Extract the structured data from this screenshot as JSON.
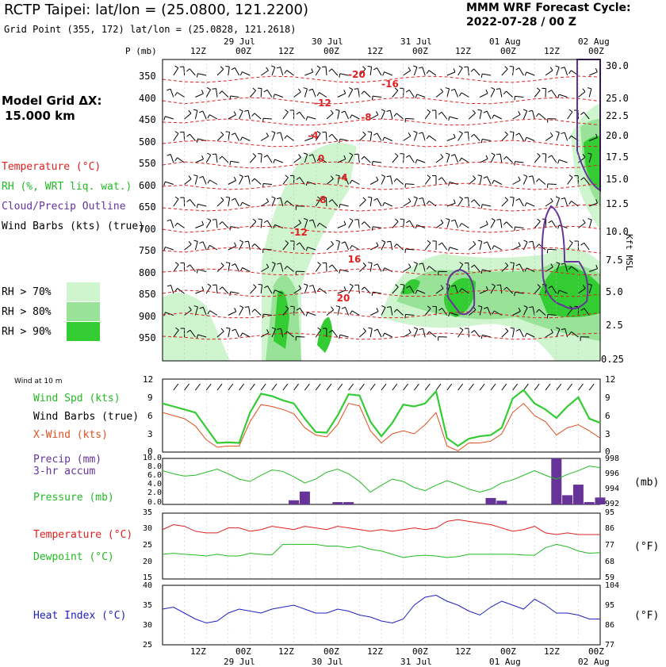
{
  "header": {
    "station_title": "RCTP Taipei:  lat/lon = (25.0800, 121.2200)",
    "grid_point": "Grid Point (355, 172) lat/lon = (25.0828, 121.2618)",
    "forecast_title": "MMM WRF Forecast Cycle:",
    "forecast_cycle": "2022-07-28 / 00  Z"
  },
  "time_axis": {
    "hour_labels": [
      "12Z",
      "00Z",
      "12Z",
      "00Z",
      "12Z",
      "00Z",
      "12Z",
      "00Z",
      "12Z",
      "00Z"
    ],
    "day_labels": [
      "29 Jul",
      "30 Jul",
      "31 Jul",
      "01 Aug",
      "02 Aug"
    ]
  },
  "sounding": {
    "pressure_unit_label": "P (mb)",
    "pressure_levels": [
      "350",
      "400",
      "450",
      "500",
      "550",
      "600",
      "650",
      "700",
      "750",
      "800",
      "850",
      "900",
      "950"
    ],
    "height_levels": [
      "30.0",
      "25.0",
      "22.5",
      "20.0",
      "17.5",
      "15.0",
      "12.5",
      "10.0",
      "7.5",
      "5.0",
      "2.5",
      "0.25"
    ],
    "height_axis_label": "Kft MSL",
    "model_grid_label": "Model Grid ΔX:",
    "model_grid_value": "15.000 km",
    "legend": {
      "temperature": "Temperature (°C)",
      "rh": "RH (%, WRT liq. wat.)",
      "cloud": "Cloud/Precip Outline",
      "wind": "Wind Barbs (kts) (true)",
      "rh70": "RH > 70%",
      "rh80": "RH > 80%",
      "rh90": "RH > 90%"
    },
    "temperature_labels": [
      "-20",
      "-16",
      "-12",
      "-8",
      "-4",
      "-4",
      "0",
      "-8",
      "-12",
      "16",
      "20"
    ],
    "colors": {
      "temp": "#e02020",
      "rh70": "#cff5cf",
      "rh80": "#99e399",
      "rh90": "#33cc33",
      "cloud": "#663399"
    }
  },
  "wind_panel": {
    "title": "Wind at 10 m",
    "speed_label": "Wind Spd (kts)",
    "barbs_label": "Wind Barbs (true)",
    "xwind_label": "X-Wind (kts)",
    "y_ticks": [
      "12",
      "9",
      "6",
      "3",
      "0"
    ]
  },
  "precip_panel": {
    "precip_label": "Precip (mm)",
    "precip_sub": "3-hr accum",
    "pressure_label": "Pressure (mb)",
    "left_ticks": [
      "10.0",
      "8.0",
      "6.0",
      "4.0",
      "2.0",
      "0.0"
    ],
    "right_ticks": [
      "998",
      "996",
      "994",
      "992"
    ],
    "unit": "(mb)"
  },
  "temp_panel": {
    "temp_label": "Temperature (°C)",
    "dew_label": "Dewpoint (°C)",
    "left_ticks": [
      "35",
      "30",
      "25",
      "20",
      "15"
    ],
    "right_ticks": [
      "95",
      "86",
      "77",
      "68",
      "59"
    ],
    "unit": "(°F)"
  },
  "heat_panel": {
    "label": "Heat Index (°C)",
    "left_ticks": [
      "40",
      "35",
      "30",
      "25"
    ],
    "right_ticks": [
      "104",
      "95",
      "86",
      "77"
    ],
    "unit": "(°F)"
  },
  "chart_data": [
    {
      "type": "line",
      "title": "Wind at 10 m",
      "x": [
        0,
        1,
        2,
        3,
        4,
        5,
        6,
        7,
        8,
        9,
        10,
        11,
        12,
        13,
        14,
        15,
        16,
        17,
        18,
        19,
        20,
        21,
        22,
        23,
        24,
        25,
        26,
        27,
        28,
        29,
        30,
        31,
        32,
        33,
        34,
        35,
        36,
        37,
        38,
        39,
        40
      ],
      "ylim": [
        0,
        12
      ],
      "series": [
        {
          "name": "Wind Spd (kts)",
          "values": [
            8,
            7.5,
            7,
            6.5,
            4,
            1.5,
            1.6,
            1.5,
            6.5,
            9.6,
            9.2,
            8.5,
            8,
            5.5,
            3.3,
            3.2,
            6,
            9.5,
            9.3,
            5,
            2.6,
            4.8,
            7.8,
            7.5,
            8,
            10,
            2.3,
            1.0,
            2.2,
            2.6,
            2.8,
            4,
            8.8,
            10.2,
            8.0,
            7.0,
            5.6,
            7.5,
            9,
            5.5,
            4.8
          ]
        },
        {
          "name": "X-Wind (kts)",
          "values": [
            6.5,
            6.0,
            5.5,
            4.3,
            2.0,
            0.8,
            1.0,
            1.0,
            5.0,
            7.8,
            7.5,
            7.0,
            6.3,
            4.0,
            2.8,
            2.5,
            4.5,
            8.0,
            7.6,
            3.5,
            1.5,
            3.0,
            3.5,
            3.0,
            4.5,
            6.5,
            1.0,
            0.2,
            1.5,
            1.5,
            1.8,
            3.0,
            6.5,
            8.0,
            6.0,
            5.0,
            2.8,
            4.0,
            4.5,
            3.5,
            2.3
          ]
        }
      ]
    },
    {
      "type": "bar",
      "title": "Precip (mm) 3-hr accum",
      "x": [
        0,
        1,
        2,
        3,
        4,
        5,
        6,
        7,
        8,
        9,
        10,
        11,
        12,
        13,
        14,
        15,
        16,
        17,
        18,
        19,
        20,
        21,
        22,
        23,
        24,
        25,
        26,
        27,
        28,
        29,
        30,
        31,
        32,
        33,
        34,
        35,
        36,
        37,
        38,
        39,
        40
      ],
      "ylim": [
        0,
        10
      ],
      "values": [
        0,
        0,
        0,
        0,
        0,
        0,
        0,
        0,
        0,
        0,
        0,
        0,
        0.9,
        2.8,
        0,
        0,
        0.5,
        0.5,
        0,
        0,
        0,
        0,
        0,
        0,
        0,
        0,
        0,
        0,
        0,
        0,
        1.4,
        0.8,
        0,
        0,
        0,
        0,
        10,
        2,
        4.3,
        0.5,
        1.5
      ]
    },
    {
      "type": "line",
      "title": "Pressure (mb)",
      "x": [
        0,
        1,
        2,
        3,
        4,
        5,
        6,
        7,
        8,
        9,
        10,
        11,
        12,
        13,
        14,
        15,
        16,
        17,
        18,
        19,
        20,
        21,
        22,
        23,
        24,
        25,
        26,
        27,
        28,
        29,
        30,
        31,
        32,
        33,
        34,
        35,
        36,
        37,
        38,
        39,
        40
      ],
      "ylim": [
        992,
        998
      ],
      "values": [
        996.4,
        996.0,
        995.7,
        995.8,
        996.2,
        996.6,
        996.0,
        995.3,
        995.0,
        995.8,
        996.5,
        996.3,
        995.6,
        994.8,
        995.3,
        996.2,
        996.6,
        996.0,
        995.0,
        993.6,
        994.5,
        995.3,
        995.0,
        994.2,
        993.8,
        994.5,
        995.1,
        994.6,
        994.0,
        993.6,
        994.0,
        994.8,
        995.2,
        995.8,
        996.4,
        995.8,
        995.3,
        995.9,
        996.4,
        997.0,
        996.8
      ]
    },
    {
      "type": "line",
      "title": "Temperature / Dewpoint (°C)",
      "x": [
        0,
        1,
        2,
        3,
        4,
        5,
        6,
        7,
        8,
        9,
        10,
        11,
        12,
        13,
        14,
        15,
        16,
        17,
        18,
        19,
        20,
        21,
        22,
        23,
        24,
        25,
        26,
        27,
        28,
        29,
        30,
        31,
        32,
        33,
        34,
        35,
        36,
        37,
        38,
        39,
        40
      ],
      "ylim": [
        15,
        35
      ],
      "series": [
        {
          "name": "Temperature (°C)",
          "values": [
            30,
            31.5,
            31,
            29.5,
            29,
            29,
            30.5,
            30.5,
            29.5,
            30,
            31,
            30.5,
            30,
            31,
            30.5,
            30,
            31,
            30.5,
            30,
            29.5,
            30,
            29.5,
            30,
            30.5,
            30,
            30.5,
            32.5,
            33,
            32.5,
            32,
            31.5,
            30.5,
            29.5,
            30,
            31,
            29,
            28.5,
            29,
            28.5,
            28.5,
            28.5
          ]
        },
        {
          "name": "Dewpoint (°C)",
          "values": [
            22.5,
            22.8,
            22.5,
            22.3,
            22,
            22.5,
            22,
            22,
            22.8,
            22.5,
            22.3,
            25.5,
            25.5,
            25.5,
            25.5,
            25,
            25,
            24.5,
            25,
            24,
            23.5,
            22.5,
            21.5,
            22,
            22.2,
            22,
            21.5,
            21.8,
            22.5,
            22.5,
            22.5,
            22.5,
            22.5,
            22.3,
            22.2,
            24.5,
            25.5,
            24.8,
            23.5,
            22.8,
            23
          ]
        }
      ]
    },
    {
      "type": "line",
      "title": "Heat Index (°C)",
      "x": [
        0,
        1,
        2,
        3,
        4,
        5,
        6,
        7,
        8,
        9,
        10,
        11,
        12,
        13,
        14,
        15,
        16,
        17,
        18,
        19,
        20,
        21,
        22,
        23,
        24,
        25,
        26,
        27,
        28,
        29,
        30,
        31,
        32,
        33,
        34,
        35,
        36,
        37,
        38,
        39,
        40
      ],
      "ylim": [
        25,
        40
      ],
      "values": [
        34,
        34.5,
        33,
        31.5,
        30.5,
        31,
        33,
        34,
        33.5,
        33,
        34,
        34.5,
        35,
        34,
        33,
        33,
        34,
        33.5,
        32.5,
        32,
        31,
        30.5,
        31.5,
        35,
        37,
        37.5,
        36,
        35,
        33.5,
        32.5,
        34.5,
        36,
        35,
        34,
        36.5,
        35,
        33,
        33,
        32.5,
        31.5,
        31.5
      ]
    }
  ]
}
